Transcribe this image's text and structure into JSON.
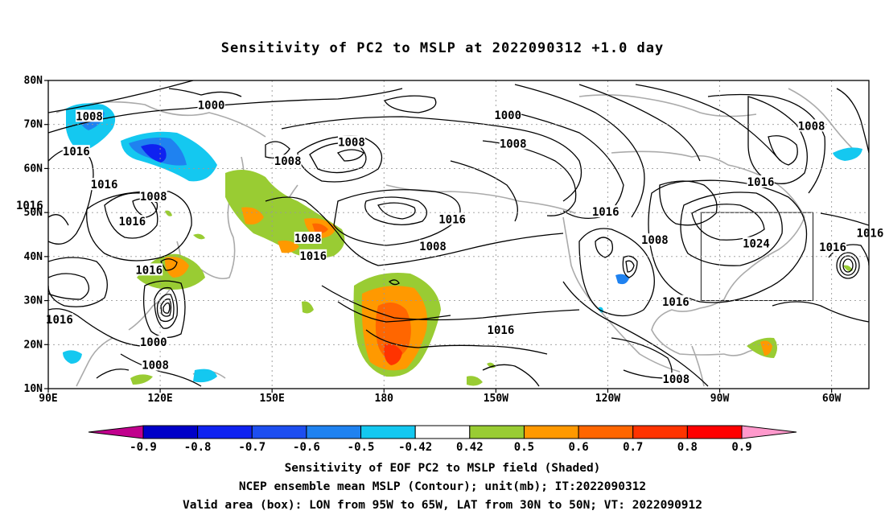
{
  "title": "Sensitivity of PC2 to MSLP at 2022090312 +1.0 day",
  "axes": {
    "lat_ticks": [
      "10N",
      "20N",
      "30N",
      "40N",
      "50N",
      "60N",
      "70N",
      "80N"
    ],
    "lon_ticks": [
      "90E",
      "120E",
      "150E",
      "180",
      "150W",
      "120W",
      "90W",
      "60W"
    ]
  },
  "contour_labels": [
    {
      "text": "1000",
      "lon": 133.7,
      "lat": 74.2
    },
    {
      "text": "1008",
      "lon": 101.0,
      "lat": 71.7
    },
    {
      "text": "1008",
      "lon": 171.3,
      "lat": 65.8
    },
    {
      "text": "1016",
      "lon": 97.5,
      "lat": 63.7
    },
    {
      "text": "1008",
      "lon": 154.2,
      "lat": 61.5
    },
    {
      "text": "1016",
      "lon": 105.0,
      "lat": 56.2
    },
    {
      "text": "1008",
      "lon": 118.2,
      "lat": 53.5
    },
    {
      "text": "1016",
      "lon": 85.0,
      "lat": 51.5
    },
    {
      "text": "1016",
      "lon": 112.5,
      "lat": 47.8
    },
    {
      "text": "1008",
      "lon": 159.6,
      "lat": 44.0
    },
    {
      "text": "1016",
      "lon": 161.0,
      "lat": 40.0
    },
    {
      "text": "1016",
      "lon": 117.0,
      "lat": 36.8
    },
    {
      "text": "1016",
      "lon": 93.0,
      "lat": 25.5
    },
    {
      "text": "1000",
      "lon": 118.2,
      "lat": 20.4
    },
    {
      "text": "1008",
      "lon": 118.7,
      "lat": 15.2
    },
    {
      "text": "1000",
      "lon": -146.8,
      "lat": 72.0
    },
    {
      "text": "1008",
      "lon": -145.4,
      "lat": 65.5
    },
    {
      "text": "1016",
      "lon": -161.7,
      "lat": 48.3
    },
    {
      "text": "1008",
      "lon": -166.9,
      "lat": 42.2
    },
    {
      "text": "1016",
      "lon": -120.6,
      "lat": 50.0
    },
    {
      "text": "1008",
      "lon": -107.4,
      "lat": 43.6
    },
    {
      "text": "1024",
      "lon": -80.2,
      "lat": 42.8
    },
    {
      "text": "1016",
      "lon": -79.0,
      "lat": 56.8
    },
    {
      "text": "1008",
      "lon": -65.4,
      "lat": 69.5
    },
    {
      "text": "1016",
      "lon": -59.7,
      "lat": 42.0
    },
    {
      "text": "1016",
      "lon": -49.7,
      "lat": 45.2
    },
    {
      "text": "1016",
      "lon": -101.8,
      "lat": 29.6
    },
    {
      "text": "1016",
      "lon": -148.7,
      "lat": 23.2
    },
    {
      "text": "1008",
      "lon": -101.7,
      "lat": 12.0
    }
  ],
  "colorbar": {
    "levels": [
      "-0.9",
      "-0.8",
      "-0.7",
      "-0.6",
      "-0.5",
      "-0.42",
      "0.42",
      "0.5",
      "0.6",
      "0.7",
      "0.8",
      "0.9"
    ],
    "colors": [
      "#c1008d",
      "#0000c8",
      "#0f22f0",
      "#1d4ef0",
      "#1f82f0",
      "#14c8f0",
      "#ffffff",
      "#99cc33",
      "#ff9900",
      "#ff6600",
      "#ff3300",
      "#ff0000",
      "#ff99cc"
    ]
  },
  "valid_box": {
    "lon_min": -95,
    "lon_max": -65,
    "lat_min": 30,
    "lat_max": 50
  },
  "footer": {
    "line1": "Sensitivity of EOF PC2 to MSLP field (Shaded)",
    "line2": "NCEP ensemble mean MSLP (Contour); unit(mb); IT:2022090312",
    "line3": "Valid area (box): LON from 95W to 65W, LAT from 30N to 50N; VT: 2022090912"
  }
}
